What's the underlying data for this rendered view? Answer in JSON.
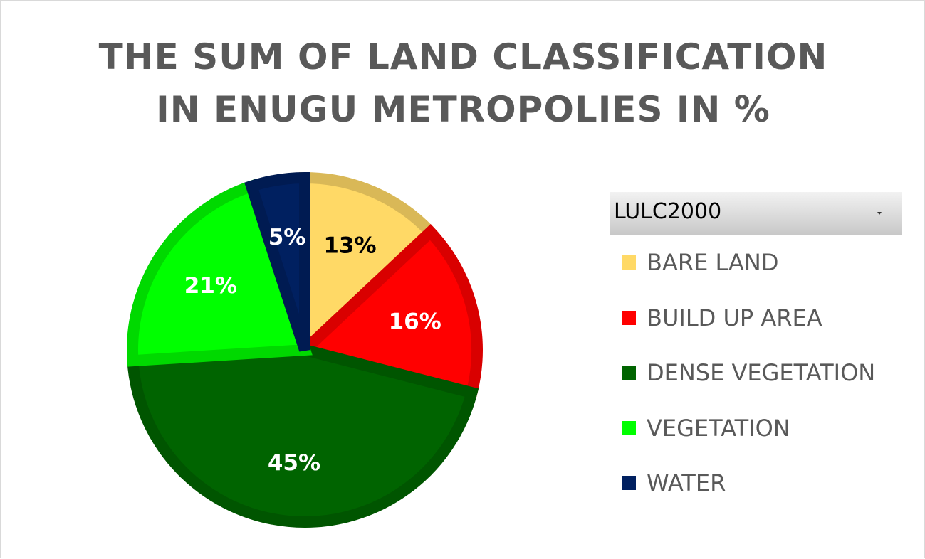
{
  "chart_data": {
    "type": "pie",
    "title_lines": [
      "THE SUM OF LAND CLASSIFICATION",
      "IN ENUGU METROPOLIES IN %"
    ],
    "filter_label": "LULC2000",
    "categories": [
      "BARE LAND",
      "BUILD UP AREA",
      "DENSE VEGETATION",
      "VEGETATION",
      "WATER"
    ],
    "values": [
      13,
      16,
      45,
      21,
      5
    ],
    "data_labels": [
      "13%",
      "16%",
      "45%",
      "21%",
      "5%"
    ],
    "colors": [
      "#FFD966",
      "#FF0000",
      "#006400",
      "#00FF00",
      "#002060"
    ],
    "label_colors": [
      "#000000",
      "#FFFFFF",
      "#FFFFFF",
      "#FFFFFF",
      "#FFFFFF"
    ],
    "legend_position": "right"
  }
}
